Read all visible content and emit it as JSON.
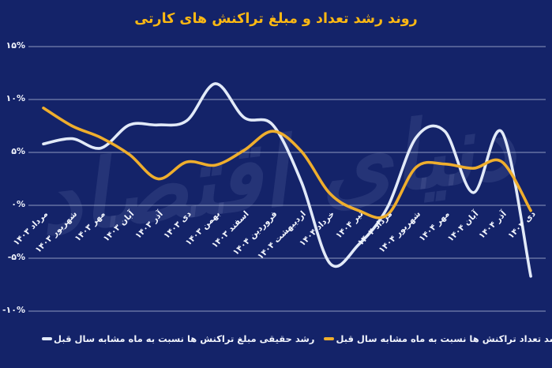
{
  "title": "روند رشد تعداد و مبلغ تراکنش های کارتی",
  "watermark": "دنیای اقتصاد",
  "colors": {
    "background": "#142369",
    "title": "#fcb813",
    "grid": "#d4ddf2",
    "axis_label": "#f2f5fd",
    "amount_series": "#e2eaf8",
    "count_series": "#efae2d"
  },
  "chart_data": {
    "type": "line",
    "title": "روند رشد تعداد و مبلغ تراکنش های کارتی",
    "categories": [
      "مرداد ۱۴۰۳",
      "شهریور ۱۴۰۳",
      "مهر ۱۴۰۳",
      "آبان ۱۴۰۳",
      "آذر ۱۴۰۳",
      "دی ۱۴۰۳",
      "بهمن ۱۴۰۳",
      "اسفند ۱۴۰۳",
      "فروردین ۱۴۰۴",
      "اردیبهشت ۱۴۰۴",
      "خرداد ۱۴۰۴",
      "تیر ۱۴۰۴",
      "مرداد ۱۴۰۴",
      "شهریور ۱۴۰۴",
      "مهر ۱۴۰۴",
      "آبان ۱۴۰۴",
      "آذر ۱۴۰۴",
      "دی ۱۴۰۴"
    ],
    "series": [
      {
        "name": "رشد حقیقی مبلغ تراکنش ها نسبت به ماه مشابه سال قبل",
        "color": "#e2eaf8",
        "values": [
          5.8,
          6.3,
          5.4,
          7.6,
          7.6,
          8.0,
          11.5,
          8.3,
          7.6,
          2.2,
          -5.5,
          -3.7,
          -0.2,
          6.4,
          7.0,
          1.2,
          6.9,
          -6.7
        ]
      },
      {
        "name": "رشد تعداد تراکنش ها نسبت به ماه مشابه سال قبل",
        "color": "#efae2d",
        "values": [
          9.2,
          7.5,
          6.4,
          4.8,
          2.5,
          4.1,
          3.8,
          5.2,
          7.0,
          5.1,
          1.1,
          -0.5,
          -0.9,
          3.6,
          3.9,
          3.5,
          4.1,
          -0.5
        ]
      }
    ],
    "y_ticks": [
      {
        "label": "۱۵%",
        "value": 15
      },
      {
        "label": "۱۰%",
        "value": 10
      },
      {
        "label": "۵%",
        "value": 5
      },
      {
        "label": "۰%",
        "value": 0
      },
      {
        "label": "-۵%",
        "value": -5
      },
      {
        "label": "-۱۰%",
        "value": -10
      }
    ],
    "ylim": [
      -10,
      15
    ],
    "grid": "horizontal",
    "legend_position": "bottom"
  },
  "legend": [
    {
      "label": "رشد حقیقی مبلغ تراکنش ها نسبت به ماه مشابه سال قبل",
      "color": "#e2eaf8"
    },
    {
      "label": "رشد تعداد تراکنش ها نسبت به ماه مشابه سال قبل",
      "color": "#efae2d"
    }
  ]
}
